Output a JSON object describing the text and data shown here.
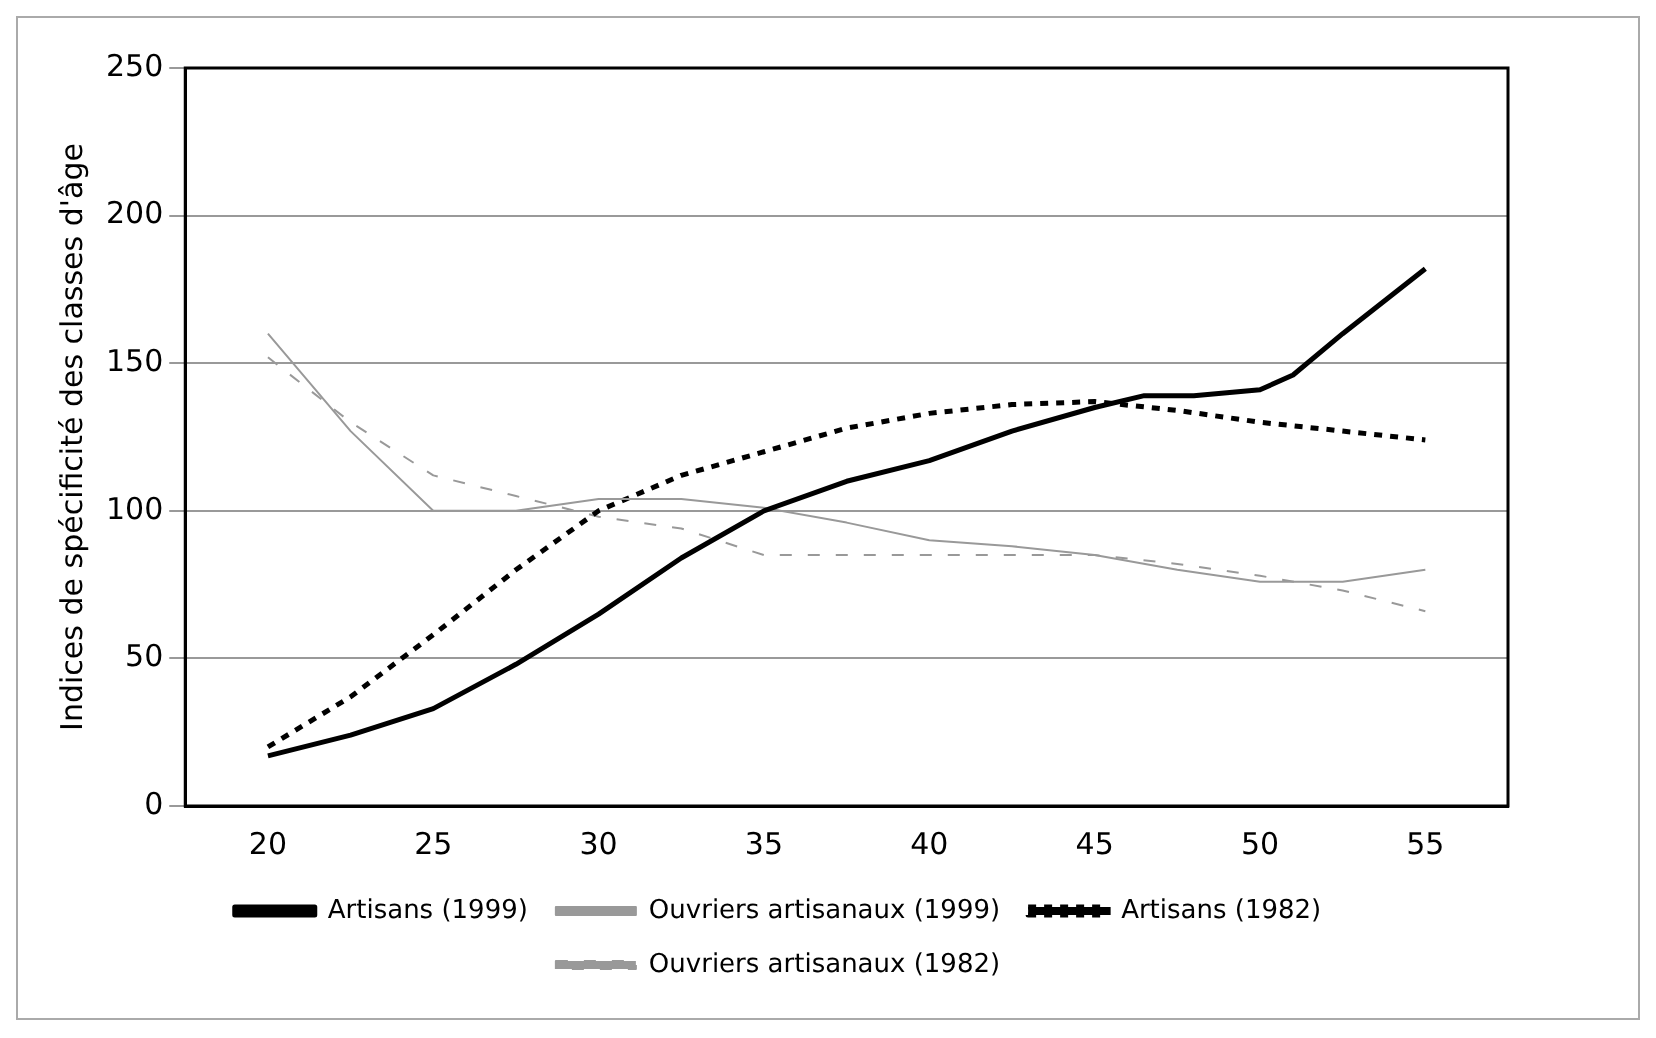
{
  "chart_data": {
    "type": "line",
    "ylabel": "Indices de spécificité des classes d'âge",
    "xlim": [
      17.5,
      57.5
    ],
    "xticks": [
      20,
      25,
      30,
      35,
      40,
      45,
      50,
      55
    ],
    "ylim": [
      0,
      250
    ],
    "yticks": [
      0,
      50,
      100,
      150,
      200,
      250
    ],
    "grid": "y",
    "legend": "bottom",
    "marker": "none",
    "series": [
      {
        "name": "Artisans (1999)",
        "color": "#000000",
        "line_style": "solid",
        "x": [
          20,
          22.5,
          25,
          27.5,
          30,
          32.5,
          35,
          37.5,
          40,
          42.5,
          45,
          46.5,
          48,
          50,
          51,
          52.5,
          55
        ],
        "values": [
          17,
          24,
          33,
          48,
          65,
          84,
          100,
          110,
          117,
          127,
          135,
          139,
          139,
          141,
          146,
          160,
          182
        ]
      },
      {
        "name": "Ouvriers artisanaux (1999)",
        "color": "#999999",
        "line_style": "solid",
        "x": [
          20,
          22.5,
          25,
          27.5,
          30,
          32.5,
          35,
          37.5,
          40,
          42.5,
          45,
          47.5,
          50,
          52.5,
          55
        ],
        "values": [
          160,
          127,
          100,
          100,
          104,
          104,
          101,
          96,
          90,
          88,
          85,
          80,
          76,
          76,
          80
        ]
      },
      {
        "name": "Artisans (1982)",
        "color": "#000000",
        "line_style": "dotted",
        "x": [
          20,
          22.5,
          25,
          27.5,
          30,
          32.5,
          35,
          37.5,
          40,
          42.5,
          45,
          47.5,
          50,
          52.5,
          55
        ],
        "values": [
          20,
          37,
          58,
          80,
          100,
          112,
          120,
          128,
          133,
          136,
          137,
          134,
          130,
          127,
          124
        ]
      },
      {
        "name": "Ouvriers artisanaux (1982)",
        "color": "#999999",
        "line_style": "dashed",
        "x": [
          20,
          22.5,
          25,
          27.5,
          30,
          32.5,
          35,
          37.5,
          40,
          42.5,
          45,
          47.5,
          50,
          52.5,
          55
        ],
        "values": [
          152,
          130,
          112,
          105,
          98,
          94,
          85,
          85,
          85,
          85,
          85,
          82,
          78,
          73,
          66
        ]
      }
    ]
  }
}
